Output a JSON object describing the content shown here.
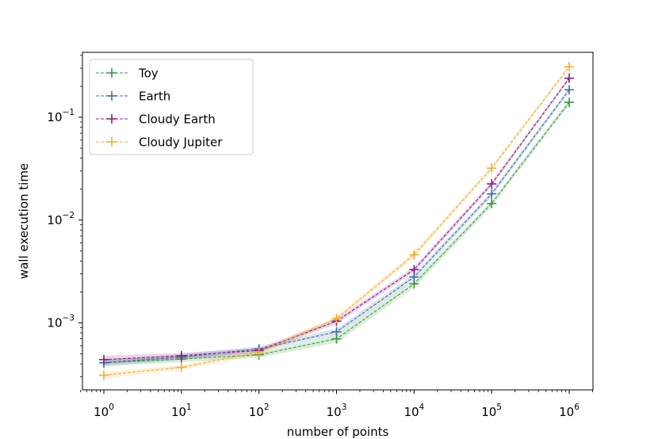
{
  "chart_data": {
    "type": "line",
    "title": "",
    "xlabel": "number of points",
    "ylabel": "wall execution time",
    "xscale": "log",
    "yscale": "log",
    "xlim": [
      0.5,
      2000000
    ],
    "ylim": [
      0.0002,
      0.5
    ],
    "x": [
      1,
      10,
      100,
      1000,
      10000,
      100000,
      1000000
    ],
    "x_tick_labels": [
      {
        "base": "10",
        "exp": "0"
      },
      {
        "base": "10",
        "exp": "1"
      },
      {
        "base": "10",
        "exp": "2"
      },
      {
        "base": "10",
        "exp": "3"
      },
      {
        "base": "10",
        "exp": "4"
      },
      {
        "base": "10",
        "exp": "5"
      },
      {
        "base": "10",
        "exp": "6"
      }
    ],
    "y_tick_labels": [
      {
        "value": 0.001,
        "base": "10",
        "exp": "−3"
      },
      {
        "value": 0.01,
        "base": "10",
        "exp": "−2"
      },
      {
        "value": 0.1,
        "base": "10",
        "exp": "−1"
      }
    ],
    "grid": false,
    "legend_position": "top-left",
    "series": [
      {
        "name": "Toy",
        "color": "#3a9a3a",
        "values": [
          0.00041,
          0.000445,
          0.00049,
          0.0007,
          0.0024,
          0.0145,
          0.14
        ],
        "band": [
          3e-05,
          3e-05,
          3e-05,
          6e-05,
          0.0002,
          0.001,
          0.008
        ]
      },
      {
        "name": "Earth",
        "color": "#3d6e9e",
        "values": [
          0.00041,
          0.000465,
          0.00056,
          0.00082,
          0.0028,
          0.018,
          0.185
        ],
        "band": [
          3e-05,
          3e-05,
          3e-05,
          6e-05,
          0.0002,
          0.0012,
          0.01
        ]
      },
      {
        "name": "Cloudy Earth",
        "color": "#8b1a8b",
        "values": [
          0.00044,
          0.00048,
          0.00054,
          0.00104,
          0.0033,
          0.0225,
          0.24
        ],
        "band": [
          4e-05,
          3e-05,
          3e-05,
          6e-05,
          0.0002,
          0.0012,
          0.01
        ]
      },
      {
        "name": "Cloudy Jupiter",
        "color": "#f5ac2a",
        "values": [
          0.00031,
          0.00037,
          0.00052,
          0.0011,
          0.0046,
          0.032,
          0.31
        ],
        "band": [
          2e-05,
          2e-05,
          3e-05,
          6e-05,
          0.0003,
          0.0015,
          0.012
        ]
      }
    ]
  }
}
